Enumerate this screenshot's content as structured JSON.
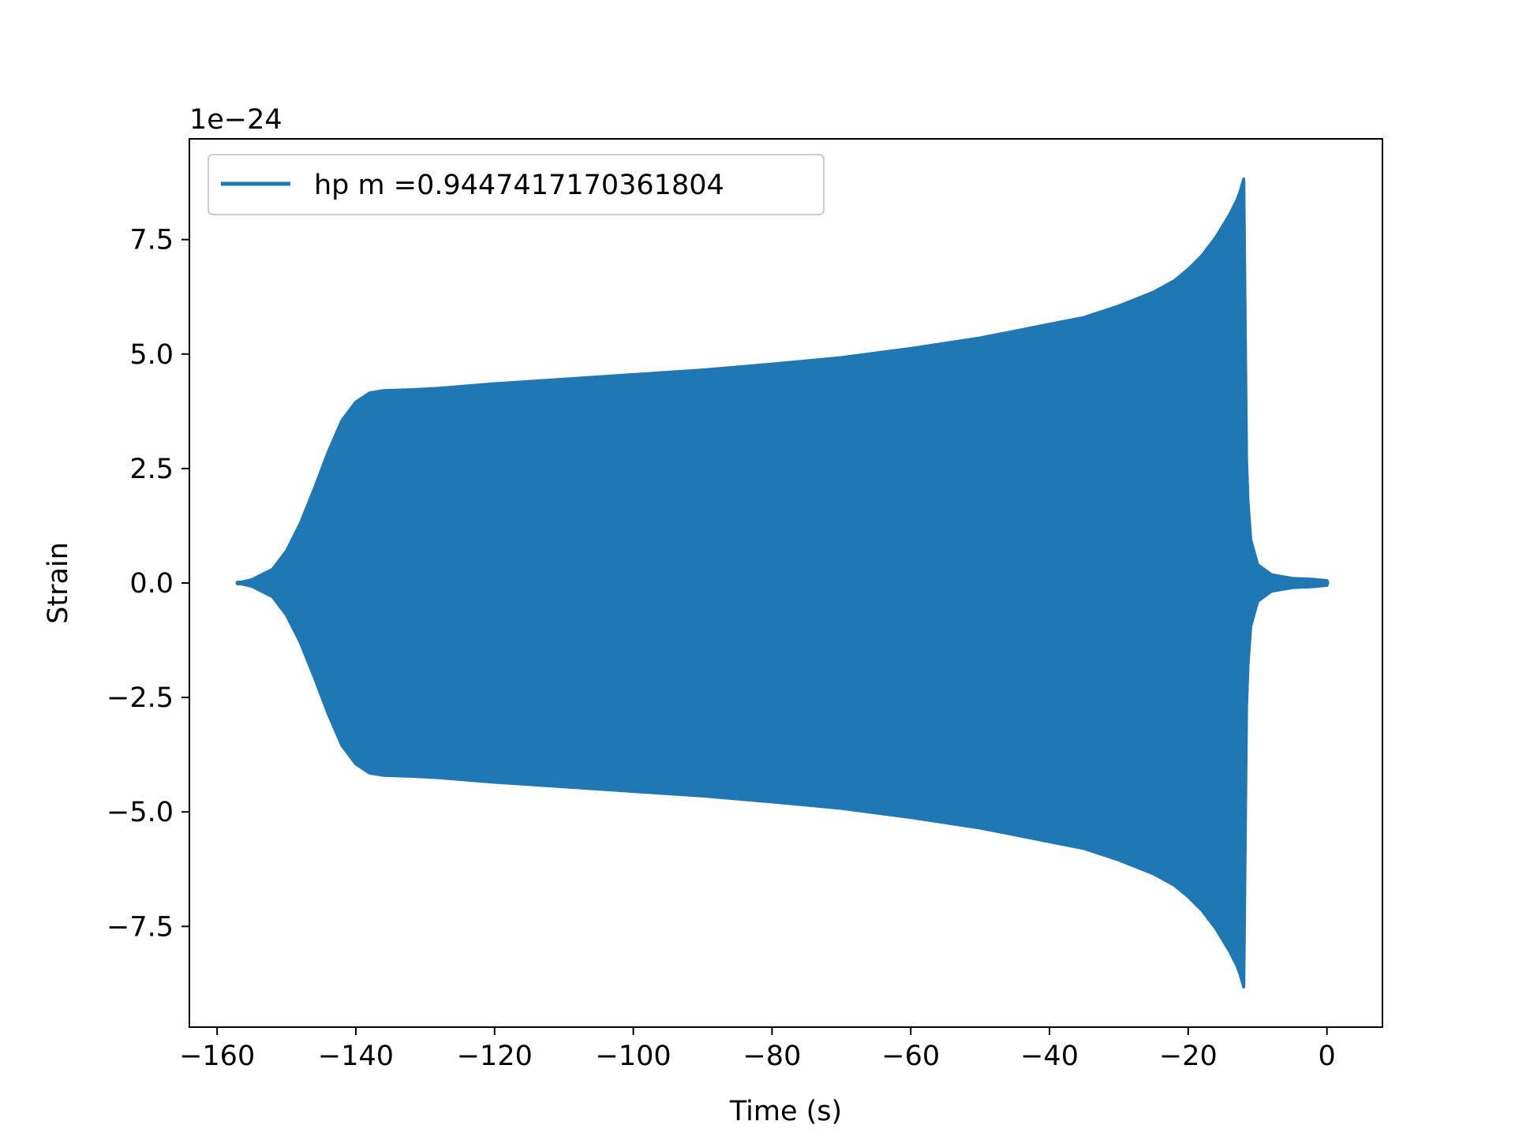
{
  "chart_data": {
    "type": "line",
    "title": "",
    "xlabel": "Time (s)",
    "ylabel": "Strain",
    "y_offset_label": "1e−24",
    "xlim": [
      -164,
      8
    ],
    "ylim": [
      -9.7,
      9.7
    ],
    "x_ticks": [
      -160,
      -140,
      -120,
      -100,
      -80,
      -60,
      -40,
      -20,
      0
    ],
    "x_tick_labels": [
      "−160",
      "−140",
      "−120",
      "−100",
      "−80",
      "−60",
      "−40",
      "−20",
      "0"
    ],
    "y_ticks": [
      -7.5,
      -5.0,
      -2.5,
      0.0,
      2.5,
      5.0,
      7.5
    ],
    "y_tick_labels": [
      "−7.5",
      "−5.0",
      "−2.5",
      "0.0",
      "2.5",
      "5.0",
      "7.5"
    ],
    "grid": false,
    "legend_position": "top-left",
    "series": [
      {
        "name": "hp m =0.9447417170361804",
        "color": "#1f77b4",
        "envelope_time": [
          -157,
          -155,
          -152,
          -150,
          -148,
          -146,
          -144,
          -142,
          -140,
          -138,
          -136,
          -132,
          -128,
          -124,
          -120,
          -110,
          -100,
          -90,
          -80,
          -70,
          -60,
          -50,
          -40,
          -35,
          -30,
          -25,
          -22,
          -20,
          -18,
          -16,
          -14,
          -13,
          -12.5,
          -12,
          -11.8,
          -11.6,
          -11.4,
          -11,
          -10,
          -8,
          -5,
          -2,
          0
        ],
        "envelope_upper": [
          0.0,
          0.07,
          0.3,
          0.7,
          1.3,
          2.05,
          2.85,
          3.55,
          3.95,
          4.15,
          4.2,
          4.22,
          4.25,
          4.3,
          4.35,
          4.45,
          4.55,
          4.65,
          4.78,
          4.92,
          5.12,
          5.35,
          5.65,
          5.8,
          6.05,
          6.35,
          6.6,
          6.85,
          7.15,
          7.55,
          8.05,
          8.35,
          8.55,
          8.82,
          5.8,
          2.7,
          1.8,
          0.95,
          0.4,
          0.18,
          0.1,
          0.08,
          0.05
        ],
        "envelope_lower": [
          0.0,
          -0.07,
          -0.3,
          -0.7,
          -1.3,
          -2.05,
          -2.85,
          -3.55,
          -3.95,
          -4.15,
          -4.2,
          -4.22,
          -4.25,
          -4.3,
          -4.35,
          -4.45,
          -4.55,
          -4.65,
          -4.78,
          -4.92,
          -5.12,
          -5.35,
          -5.65,
          -5.8,
          -6.05,
          -6.35,
          -6.6,
          -6.85,
          -7.15,
          -7.55,
          -8.05,
          -8.35,
          -8.55,
          -8.82,
          -5.8,
          -2.7,
          -1.8,
          -0.95,
          -0.4,
          -0.18,
          -0.1,
          -0.08,
          -0.05
        ]
      }
    ]
  }
}
